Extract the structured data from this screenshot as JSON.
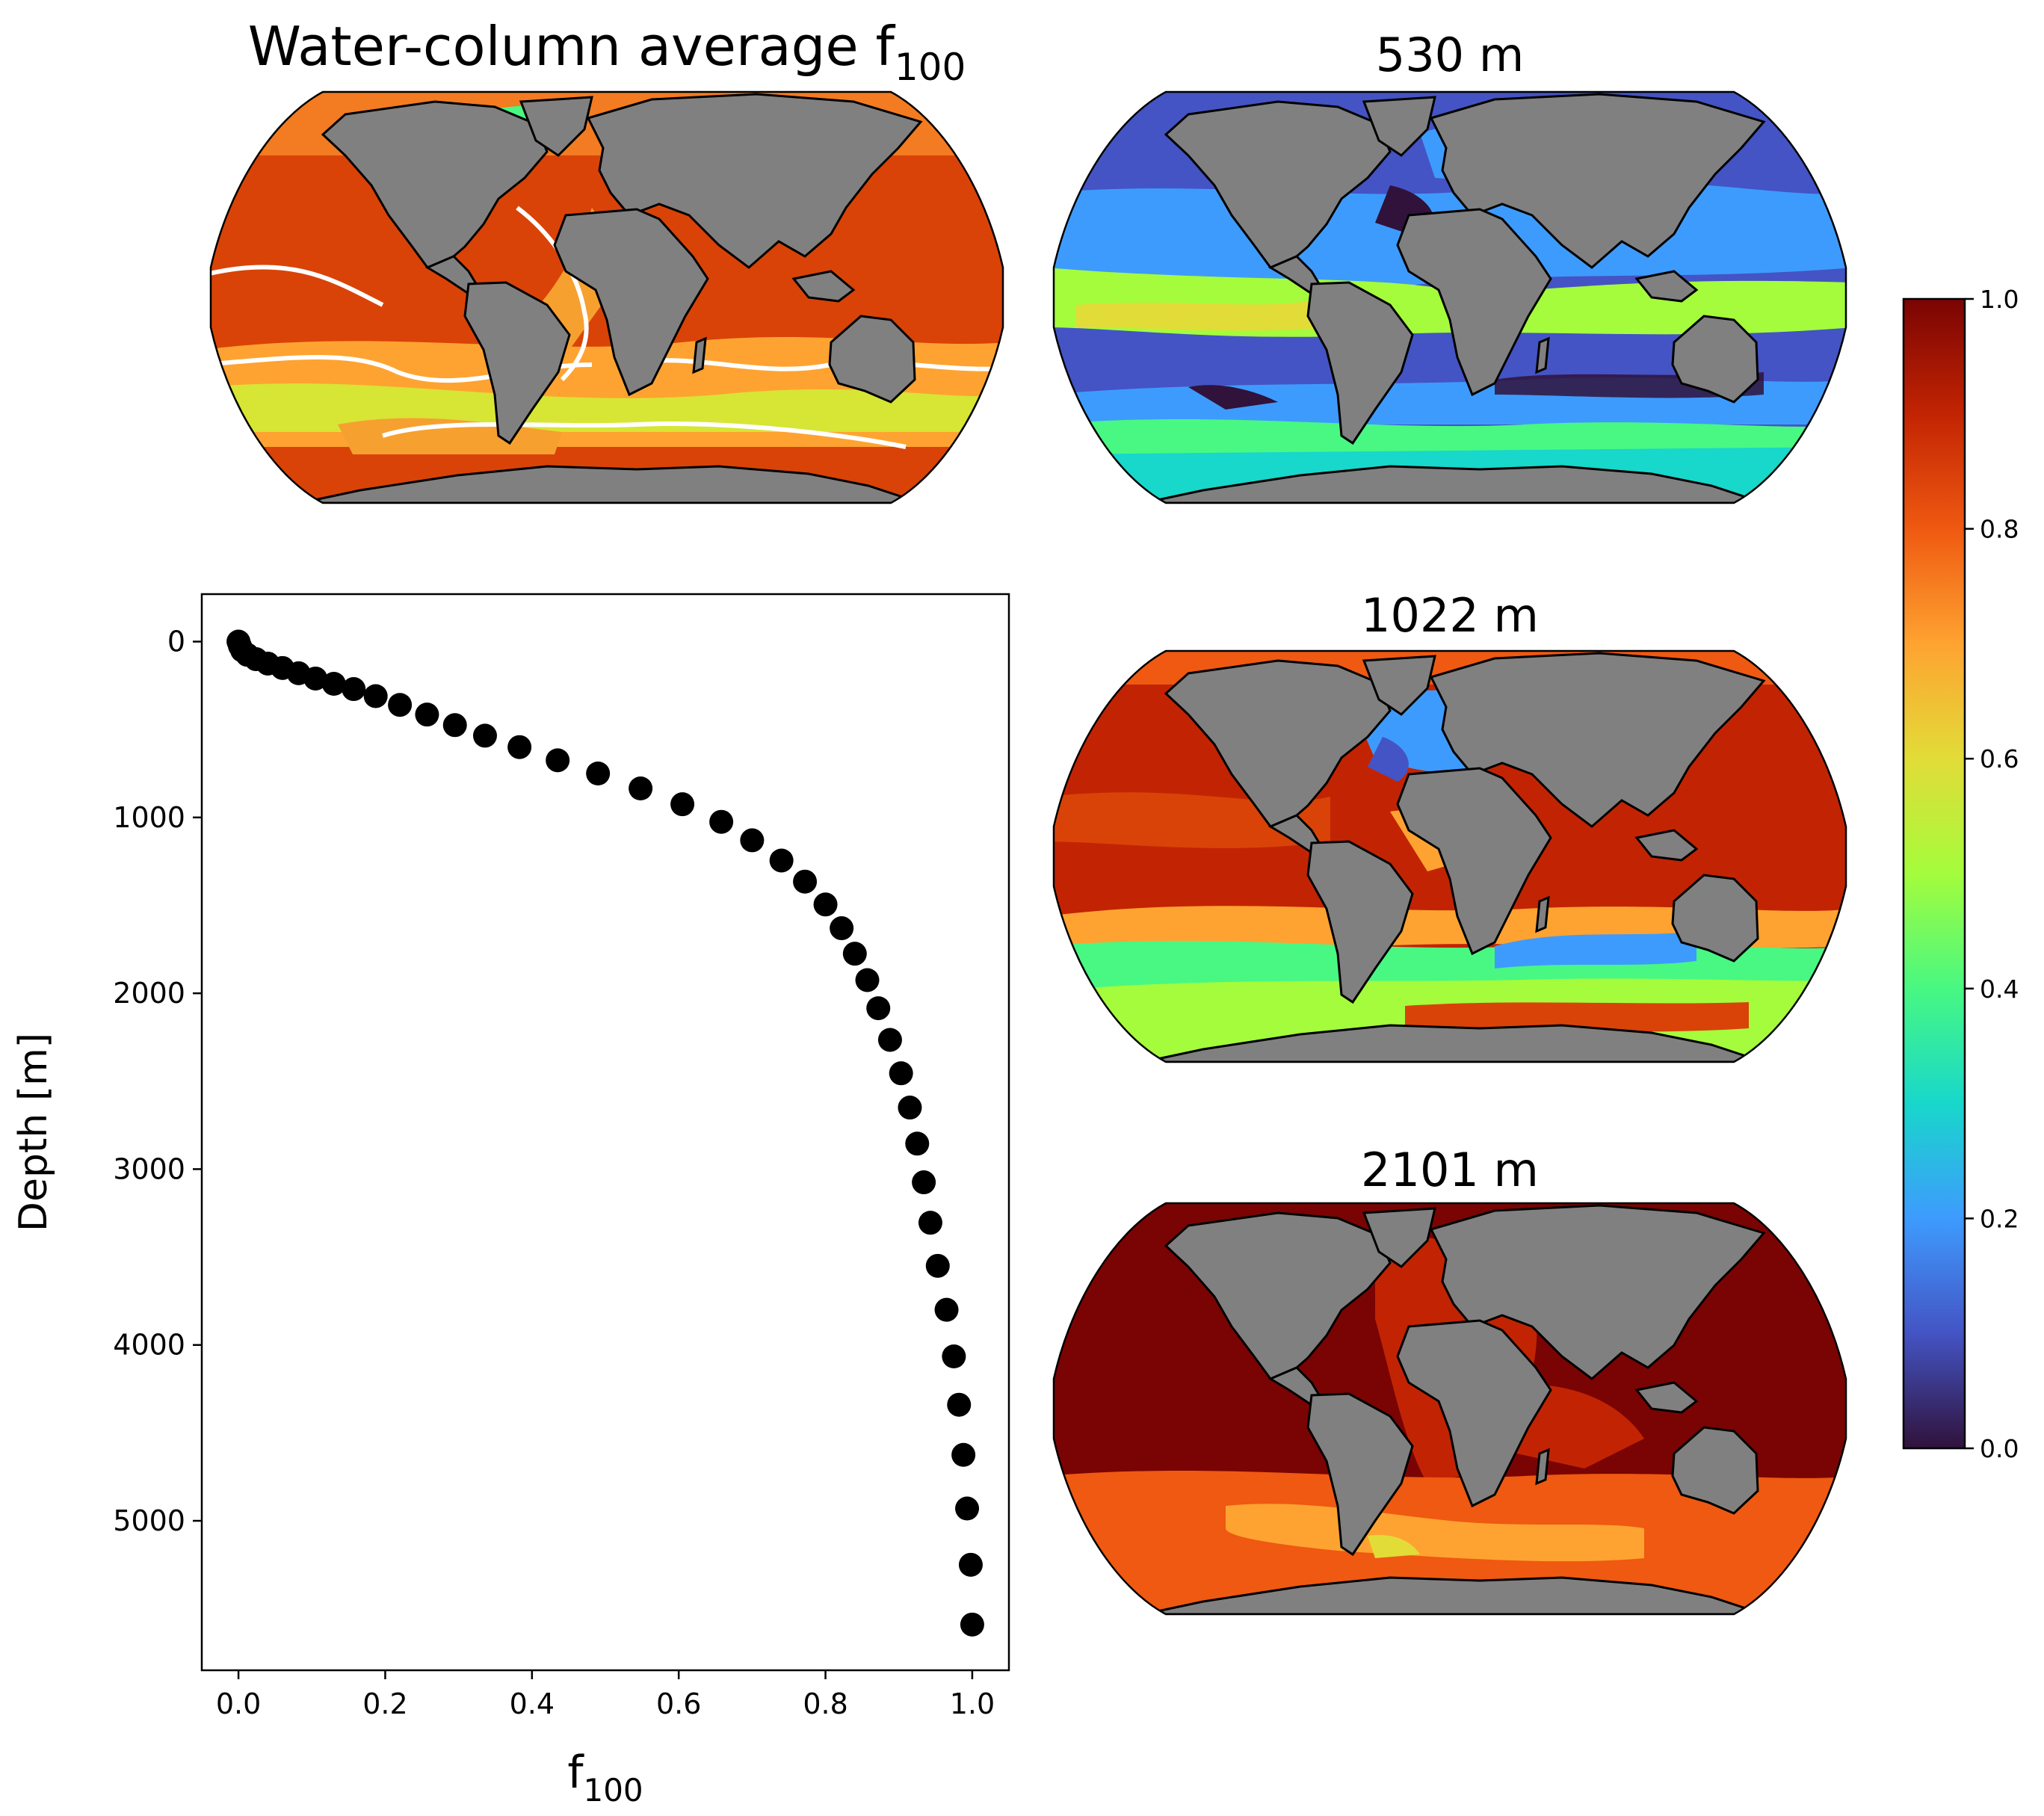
{
  "chart_data": [
    {
      "type": "map",
      "title": "Water-column average f",
      "title_subscript": "100",
      "projection": "robinson",
      "colormap": "turbo",
      "land_color": "#808080",
      "contour_color": "#ffffff"
    },
    {
      "type": "map",
      "title": "530 m",
      "projection": "robinson",
      "colormap": "turbo",
      "land_color": "#808080"
    },
    {
      "type": "map",
      "title": "1022 m",
      "projection": "robinson",
      "colormap": "turbo",
      "land_color": "#808080"
    },
    {
      "type": "map",
      "title": "2101 m",
      "projection": "robinson",
      "colormap": "turbo",
      "land_color": "#808080"
    },
    {
      "type": "scatter",
      "xlabel": "f",
      "xlabel_subscript": "100",
      "ylabel": "Depth [m]",
      "xlim": [
        -0.05,
        1.05
      ],
      "ylim": [
        5850,
        -270
      ],
      "y_inverted": true,
      "xticks": [
        0.0,
        0.2,
        0.4,
        0.6,
        0.8,
        1.0
      ],
      "xtick_labels": [
        "0.0",
        "0.2",
        "0.4",
        "0.6",
        "0.8",
        "1.0"
      ],
      "yticks": [
        0,
        1000,
        2000,
        3000,
        4000,
        5000
      ],
      "ytick_labels": [
        "0",
        "1000",
        "2000",
        "3000",
        "4000",
        "5000"
      ],
      "marker_color": "#000000",
      "points": [
        {
          "x": 0.0,
          "y": 0
        },
        {
          "x": 0.002,
          "y": 25
        },
        {
          "x": 0.005,
          "y": 50
        },
        {
          "x": 0.012,
          "y": 75
        },
        {
          "x": 0.024,
          "y": 100
        },
        {
          "x": 0.04,
          "y": 125
        },
        {
          "x": 0.06,
          "y": 150
        },
        {
          "x": 0.082,
          "y": 180
        },
        {
          "x": 0.105,
          "y": 210
        },
        {
          "x": 0.13,
          "y": 240
        },
        {
          "x": 0.157,
          "y": 270
        },
        {
          "x": 0.187,
          "y": 310
        },
        {
          "x": 0.22,
          "y": 360
        },
        {
          "x": 0.257,
          "y": 415
        },
        {
          "x": 0.295,
          "y": 475
        },
        {
          "x": 0.336,
          "y": 535
        },
        {
          "x": 0.383,
          "y": 600
        },
        {
          "x": 0.435,
          "y": 675
        },
        {
          "x": 0.49,
          "y": 750
        },
        {
          "x": 0.548,
          "y": 835
        },
        {
          "x": 0.605,
          "y": 925
        },
        {
          "x": 0.658,
          "y": 1025
        },
        {
          "x": 0.7,
          "y": 1130
        },
        {
          "x": 0.74,
          "y": 1245
        },
        {
          "x": 0.772,
          "y": 1365
        },
        {
          "x": 0.8,
          "y": 1495
        },
        {
          "x": 0.822,
          "y": 1630
        },
        {
          "x": 0.84,
          "y": 1775
        },
        {
          "x": 0.857,
          "y": 1925
        },
        {
          "x": 0.872,
          "y": 2085
        },
        {
          "x": 0.888,
          "y": 2265
        },
        {
          "x": 0.903,
          "y": 2455
        },
        {
          "x": 0.915,
          "y": 2650
        },
        {
          "x": 0.925,
          "y": 2855
        },
        {
          "x": 0.934,
          "y": 3075
        },
        {
          "x": 0.943,
          "y": 3305
        },
        {
          "x": 0.953,
          "y": 3550
        },
        {
          "x": 0.965,
          "y": 3800
        },
        {
          "x": 0.975,
          "y": 4065
        },
        {
          "x": 0.982,
          "y": 4340
        },
        {
          "x": 0.988,
          "y": 4625
        },
        {
          "x": 0.993,
          "y": 4930
        },
        {
          "x": 0.998,
          "y": 5250
        },
        {
          "x": 1.0,
          "y": 5590
        }
      ]
    },
    {
      "type": "colorbar",
      "colormap": "turbo",
      "range": [
        0.0,
        1.0
      ],
      "ticks": [
        0.0,
        0.2,
        0.4,
        0.6,
        0.8,
        1.0
      ],
      "tick_labels": [
        "0.0",
        "0.2",
        "0.4",
        "0.6",
        "0.8",
        "1.0"
      ]
    }
  ]
}
